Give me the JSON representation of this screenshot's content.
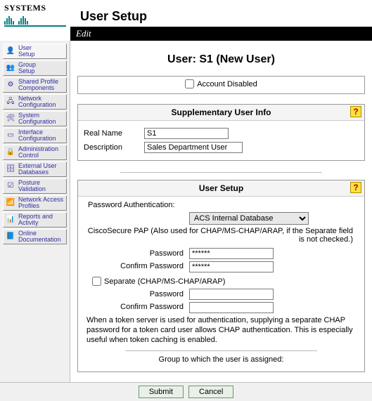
{
  "brand": "CISCO SYSTEMS",
  "page_title": "User Setup",
  "edit_label": "Edit",
  "sidebar": {
    "items": [
      {
        "label": "User\nSetup",
        "icon": "👤"
      },
      {
        "label": "Group\nSetup",
        "icon": "👥"
      },
      {
        "label": "Shared Profile\nComponents",
        "icon": "⚙"
      },
      {
        "label": "Network\nConfiguration",
        "icon": "🖧"
      },
      {
        "label": "System\nConfiguration",
        "icon": "🛠"
      },
      {
        "label": "Interface\nConfiguration",
        "icon": "▭"
      },
      {
        "label": "Administration\nControl",
        "icon": "🔒"
      },
      {
        "label": "External User\nDatabases",
        "icon": "🗄"
      },
      {
        "label": "Posture\nValidation",
        "icon": "☑"
      },
      {
        "label": "Network Access\nProfiles",
        "icon": "📶"
      },
      {
        "label": "Reports and\nActivity",
        "icon": "📊"
      },
      {
        "label": "Online\nDocumentation",
        "icon": "📘"
      }
    ]
  },
  "user_heading": "User: S1 (New User)",
  "account_disabled_label": "Account Disabled",
  "supp_info": {
    "title": "Supplementary User Info",
    "real_name_label": "Real Name",
    "real_name_value": "S1",
    "description_label": "Description",
    "description_value": "Sales Department User"
  },
  "user_setup": {
    "title": "User Setup",
    "pw_auth_label": "Password Authentication:",
    "db_selected": "ACS Internal Database",
    "pap_note": "CiscoSecure PAP (Also used for CHAP/MS-CHAP/ARAP, if the Separate field is not checked.)",
    "password_label": "Password",
    "confirm_label": "Confirm Password",
    "password_value": "******",
    "confirm_value": "******",
    "separate_label": "Separate (CHAP/MS-CHAP/ARAP)",
    "sep_password_value": "",
    "sep_confirm_value": "",
    "token_note": "When a token server is used for authentication, supplying a separate CHAP password for a token card user allows CHAP authentication. This is especially useful when token caching is enabled.",
    "group_label": "Group to which the user is assigned:"
  },
  "footer": {
    "submit": "Submit",
    "cancel": "Cancel"
  },
  "help_glyph": "?"
}
